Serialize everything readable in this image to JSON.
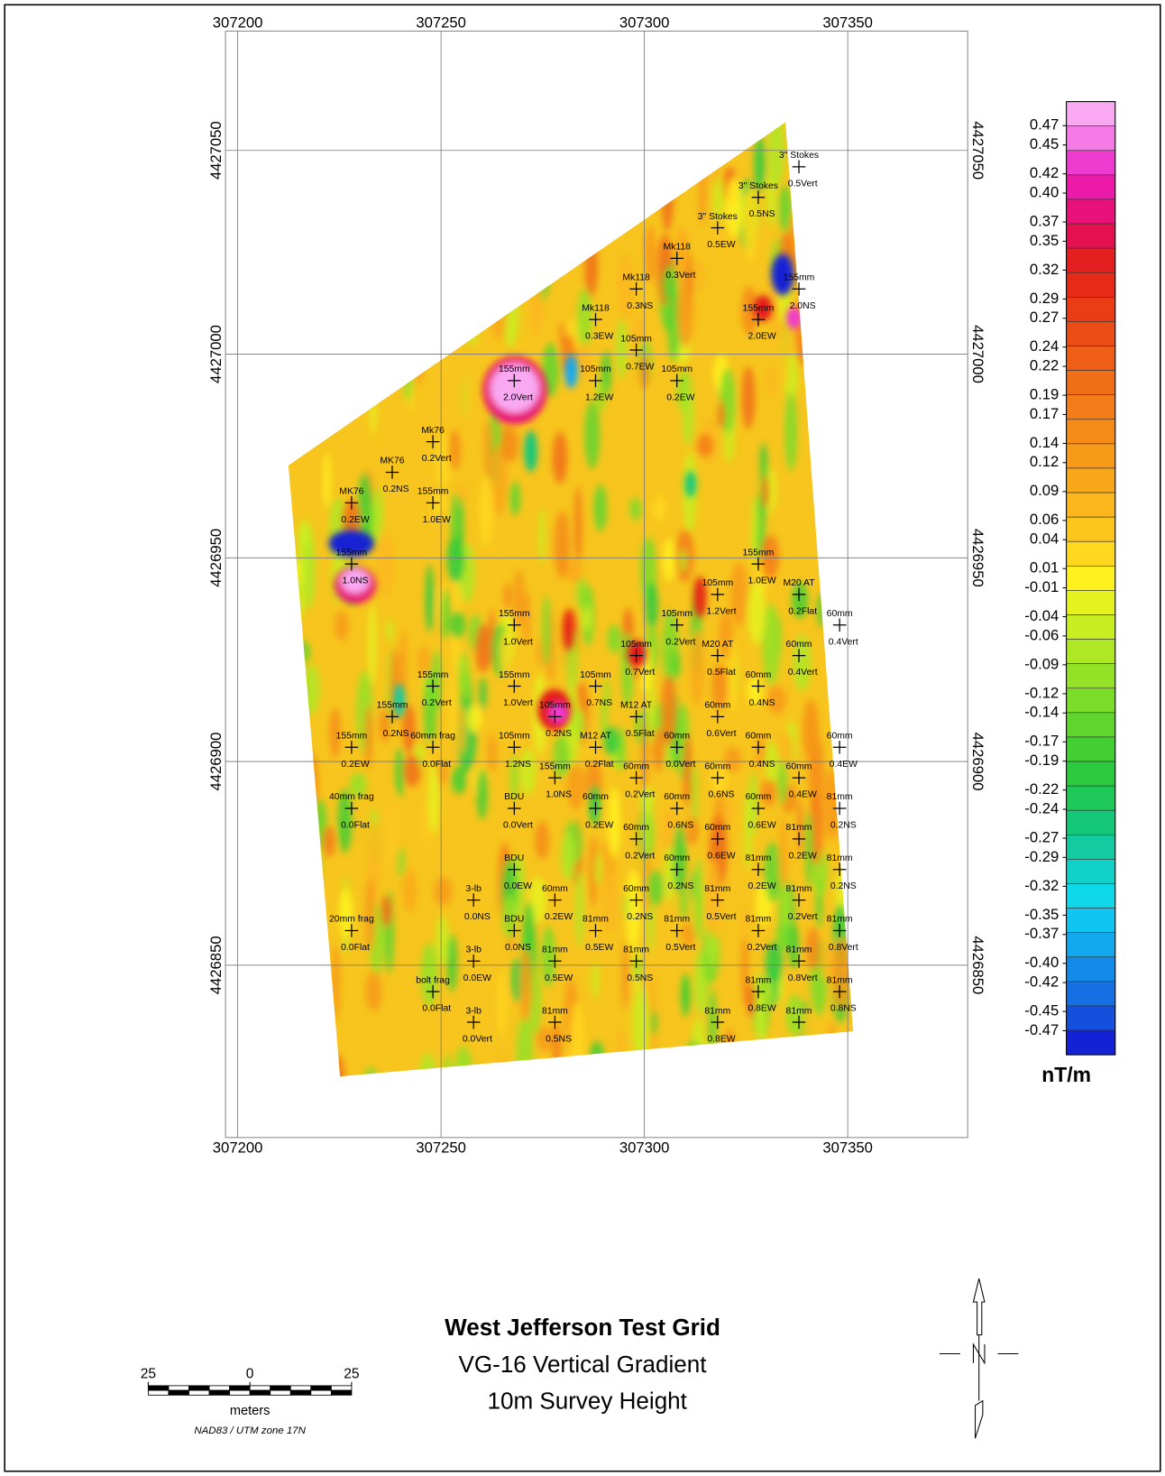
{
  "map": {
    "title": {
      "main": "West Jefferson Test Grid",
      "subtitle": "VG-16 Vertical Gradient",
      "note": "10m Survey Height"
    },
    "xlim": [
      307197,
      307379.5
    ],
    "ylim": [
      4426807.7,
      4427079.3
    ],
    "xticks": [
      307200,
      307250,
      307300,
      307350
    ],
    "yticks": [
      4426850,
      4426900,
      4426950,
      4427000,
      4427050
    ],
    "grid": true,
    "colorbar": {
      "unit": "nT/m",
      "clim": [
        -0.495,
        0.495
      ],
      "ticks": [
        0.47,
        0.45,
        0.42,
        {
          "value": 0.4,
          "label": "0.40"
        },
        0.37,
        0.35,
        0.32,
        0.29,
        0.27,
        0.24,
        0.22,
        0.19,
        0.17,
        0.14,
        0.12,
        0.09,
        0.06,
        0.04,
        0.01,
        -0.01,
        -0.04,
        -0.06,
        -0.09,
        -0.12,
        -0.14,
        -0.17,
        -0.19,
        -0.22,
        -0.24,
        -0.27,
        -0.29,
        -0.32,
        -0.35,
        -0.37,
        {
          "value": -0.4,
          "label": "-0.40"
        },
        -0.42,
        -0.45,
        -0.47
      ],
      "colors": [
        "#f9a8f2",
        "#f57ae6",
        "#ee3bd0",
        "#ec1aa8",
        "#e8117a",
        "#e5104f",
        "#e41f1f",
        "#e62a17",
        "#ea3c15",
        "#ec4c15",
        "#ee5e16",
        "#f06e17",
        "#f37d18",
        "#f58b19",
        "#f79a1a",
        "#f9a81b",
        "#fbb71c",
        "#fdc61d",
        "#ffd71e",
        "#fff11f",
        "#e5f21f",
        "#c9ee21",
        "#aee824",
        "#94e227",
        "#7bdc2a",
        "#5fd52d",
        "#43cf31",
        "#2ccb3f",
        "#1ec859",
        "#14c87a",
        "#12cba0",
        "#10d0c8",
        "#0fd8eb",
        "#10c5f2",
        "#12a8ee",
        "#138be9",
        "#1470e3",
        "#1450dc",
        "#1222d4"
      ]
    },
    "scale_bar": {
      "ticks": [
        {
          "value": -25,
          "label": "25"
        },
        0,
        25
      ],
      "unit": "meters",
      "datum": "NAD83 / UTM zone 17N"
    },
    "targets": [
      {
        "name": "3\" Stokes",
        "orient": "0.5Vert",
        "e": 307338,
        "n": 4427046
      },
      {
        "name": "3\" Stokes",
        "orient": "0.5NS",
        "e": 307328,
        "n": 4427038.5
      },
      {
        "name": "3\" Stokes",
        "orient": "0.5EW",
        "e": 307318,
        "n": 4427031
      },
      {
        "name": "Mk118",
        "orient": "0.3Vert",
        "e": 307308,
        "n": 4427023.5
      },
      {
        "name": "Mk118",
        "orient": "0.3NS",
        "e": 307298,
        "n": 4427016
      },
      {
        "name": "Mk118",
        "orient": "0.3EW",
        "e": 307288,
        "n": 4427008.5
      },
      {
        "name": "155mm",
        "orient": "2.0NS",
        "e": 307338,
        "n": 4427016
      },
      {
        "name": "155mm",
        "orient": "2.0EW",
        "e": 307328,
        "n": 4427008.5
      },
      {
        "name": "105mm",
        "orient": "0.7EW",
        "e": 307298,
        "n": 4427001
      },
      {
        "name": "155mm",
        "orient": "2.0Vert",
        "e": 307268,
        "n": 4426993.5
      },
      {
        "name": "105mm",
        "orient": "1.2EW",
        "e": 307288,
        "n": 4426993.5
      },
      {
        "name": "105mm",
        "orient": "0.2EW",
        "e": 307308,
        "n": 4426993.5
      },
      {
        "name": "Mk76",
        "orient": "0.2Vert",
        "e": 307248,
        "n": 4426978.5
      },
      {
        "name": "MK76",
        "orient": "0.2NS",
        "e": 307238,
        "n": 4426971
      },
      {
        "name": "MK76",
        "orient": "0.2EW",
        "e": 307228,
        "n": 4426963.5
      },
      {
        "name": "155mm",
        "orient": "1.0EW",
        "e": 307248,
        "n": 4426963.5
      },
      {
        "name": "155mm",
        "orient": "1.0NS",
        "e": 307228,
        "n": 4426948.5
      },
      {
        "name": "155mm",
        "orient": "1.0EW",
        "e": 307328,
        "n": 4426948.5
      },
      {
        "name": "105mm",
        "orient": "1.2Vert",
        "e": 307318,
        "n": 4426941
      },
      {
        "name": "M20 AT",
        "orient": "0.2Flat",
        "e": 307338,
        "n": 4426941
      },
      {
        "name": "60mm",
        "orient": "0.4Vert",
        "e": 307348,
        "n": 4426933.5
      },
      {
        "name": "155mm",
        "orient": "1.0Vert",
        "e": 307268,
        "n": 4426933.5
      },
      {
        "name": "105mm",
        "orient": "0.2Vert",
        "e": 307308,
        "n": 4426933.5
      },
      {
        "name": "105mm",
        "orient": "0.7Vert",
        "e": 307298,
        "n": 4426926
      },
      {
        "name": "M20 AT",
        "orient": "0.5Flat",
        "e": 307318,
        "n": 4426926
      },
      {
        "name": "60mm",
        "orient": "0.4Vert",
        "e": 307338,
        "n": 4426926
      },
      {
        "name": "155mm",
        "orient": "0.2Vert",
        "e": 307248,
        "n": 4426918.5
      },
      {
        "name": "155mm",
        "orient": "1.0Vert",
        "e": 307268,
        "n": 4426918.5
      },
      {
        "name": "105mm",
        "orient": "0.7NS",
        "e": 307288,
        "n": 4426918.5
      },
      {
        "name": "60mm",
        "orient": "0.4NS",
        "e": 307328,
        "n": 4426918.5
      },
      {
        "name": "155mm",
        "orient": "0.2NS",
        "e": 307238,
        "n": 4426911
      },
      {
        "name": "105mm",
        "orient": "0.2NS",
        "e": 307278,
        "n": 4426911
      },
      {
        "name": "M12 AT",
        "orient": "0.5Flat",
        "e": 307298,
        "n": 4426911
      },
      {
        "name": "60mm",
        "orient": "0.6Vert",
        "e": 307318,
        "n": 4426911
      },
      {
        "name": "155mm",
        "orient": "0.2EW",
        "e": 307228,
        "n": 4426903.5
      },
      {
        "name": "60mm frag",
        "orient": "0.0Flat",
        "e": 307248,
        "n": 4426903.5
      },
      {
        "name": "105mm",
        "orient": "1.2NS",
        "e": 307268,
        "n": 4426903.5
      },
      {
        "name": "M12 AT",
        "orient": "0.2Flat",
        "e": 307288,
        "n": 4426903.5
      },
      {
        "name": "60mm",
        "orient": "0.0Vert",
        "e": 307308,
        "n": 4426903.5
      },
      {
        "name": "60mm",
        "orient": "0.4NS",
        "e": 307328,
        "n": 4426903.5
      },
      {
        "name": "60mm",
        "orient": "0.4EW",
        "e": 307348,
        "n": 4426903.5
      },
      {
        "name": "155mm",
        "orient": "1.0NS",
        "e": 307278,
        "n": 4426896
      },
      {
        "name": "60mm",
        "orient": "0.2Vert",
        "e": 307298,
        "n": 4426896
      },
      {
        "name": "60mm",
        "orient": "0.6NS",
        "e": 307318,
        "n": 4426896
      },
      {
        "name": "60mm",
        "orient": "0.4EW",
        "e": 307338,
        "n": 4426896
      },
      {
        "name": "40mm frag",
        "orient": "0.0Flat",
        "e": 307228,
        "n": 4426888.5
      },
      {
        "name": "BDU",
        "orient": "0.0Vert",
        "e": 307268,
        "n": 4426888.5
      },
      {
        "name": "60mm",
        "orient": "0.2EW",
        "e": 307288,
        "n": 4426888.5
      },
      {
        "name": "60mm",
        "orient": "0.6NS",
        "e": 307308,
        "n": 4426888.5
      },
      {
        "name": "60mm",
        "orient": "0.6EW",
        "e": 307328,
        "n": 4426888.5
      },
      {
        "name": "81mm",
        "orient": "0.2NS",
        "e": 307348,
        "n": 4426888.5
      },
      {
        "name": "BDU",
        "orient": "0.0EW",
        "e": 307268,
        "n": 4426873.5
      },
      {
        "name": "60mm",
        "orient": "0.2Vert",
        "e": 307298,
        "n": 4426881
      },
      {
        "name": "60mm",
        "orient": "0.6EW",
        "e": 307318,
        "n": 4426881
      },
      {
        "name": "81mm",
        "orient": "0.2EW",
        "e": 307338,
        "n": 4426881
      },
      {
        "name": "60mm",
        "orient": "0.2NS",
        "e": 307308,
        "n": 4426873.5
      },
      {
        "name": "81mm",
        "orient": "0.2EW",
        "e": 307328,
        "n": 4426873.5
      },
      {
        "name": "81mm",
        "orient": "0.2NS",
        "e": 307348,
        "n": 4426873.5
      },
      {
        "name": "3-lb",
        "orient": "0.0NS",
        "e": 307258,
        "n": 4426866
      },
      {
        "name": "60mm",
        "orient": "0.2EW",
        "e": 307278,
        "n": 4426866
      },
      {
        "name": "60mm",
        "orient": "0.2NS",
        "e": 307298,
        "n": 4426866
      },
      {
        "name": "81mm",
        "orient": "0.5Vert",
        "e": 307318,
        "n": 4426866
      },
      {
        "name": "81mm",
        "orient": "0.2Vert",
        "e": 307338,
        "n": 4426866
      },
      {
        "name": "20mm frag",
        "orient": "0.0Flat",
        "e": 307228,
        "n": 4426858.5
      },
      {
        "name": "BDU",
        "orient": "0.0NS",
        "e": 307268,
        "n": 4426858.5
      },
      {
        "name": "81mm",
        "orient": "0.5EW",
        "e": 307288,
        "n": 4426858.5
      },
      {
        "name": "81mm",
        "orient": "0.5Vert",
        "e": 307308,
        "n": 4426858.5
      },
      {
        "name": "81mm",
        "orient": "0.2Vert",
        "e": 307328,
        "n": 4426858.5
      },
      {
        "name": "81mm",
        "orient": "0.8Vert",
        "e": 307348,
        "n": 4426858.5
      },
      {
        "name": "3-lb",
        "orient": "0.0EW",
        "e": 307258,
        "n": 4426851
      },
      {
        "name": "81mm",
        "orient": "0.5EW",
        "e": 307278,
        "n": 4426851
      },
      {
        "name": "81mm",
        "orient": "0.5NS",
        "e": 307298,
        "n": 4426851
      },
      {
        "name": "81mm",
        "orient": "0.8Vert",
        "e": 307338,
        "n": 4426851
      },
      {
        "name": "bolt frag",
        "orient": "0.0Flat",
        "e": 307248,
        "n": 4426843.5
      },
      {
        "name": "81mm",
        "orient": "0.8EW",
        "e": 307328,
        "n": 4426843.5
      },
      {
        "name": "81mm",
        "orient": "0.8NS",
        "e": 307348,
        "n": 4426843.5
      },
      {
        "name": "3-lb",
        "orient": "0.0Vert",
        "e": 307258,
        "n": 4426836
      },
      {
        "name": "81mm",
        "orient": "0.5NS",
        "e": 307278,
        "n": 4426836
      },
      {
        "name": "81mm",
        "orient": "0.8EW",
        "e": 307318,
        "n": 4426836
      },
      {
        "name": "81mm",
        "e": 307338,
        "n": 4426836
      }
    ]
  }
}
